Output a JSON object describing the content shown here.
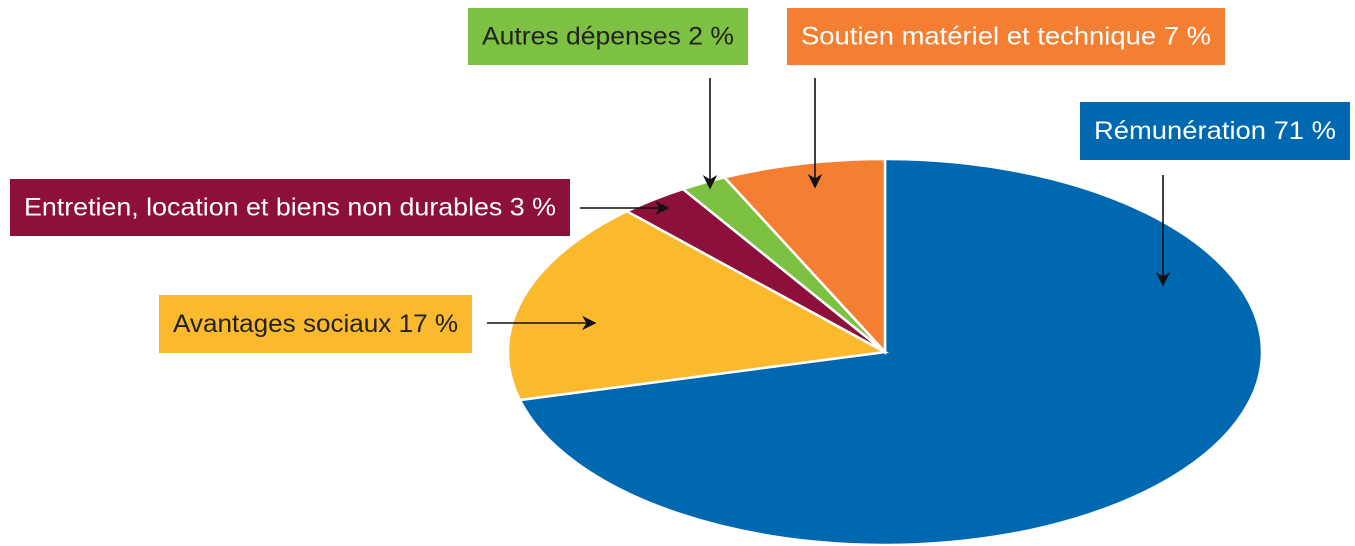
{
  "chart_data": {
    "type": "pie",
    "categories": [
      "Rémunération",
      "Avantages sociaux",
      "Entretien, location et biens non durables",
      "Autres dépenses",
      "Soutien matériel et technique"
    ],
    "values": [
      71,
      17,
      3,
      2,
      7
    ],
    "value_labels": [
      "71 %",
      "17 %",
      "3 %",
      "2 %",
      "7 %"
    ],
    "colors": [
      "#0067b1",
      "#fbb92d",
      "#8c0f3c",
      "#7cc142",
      "#f47f32"
    ]
  }
}
